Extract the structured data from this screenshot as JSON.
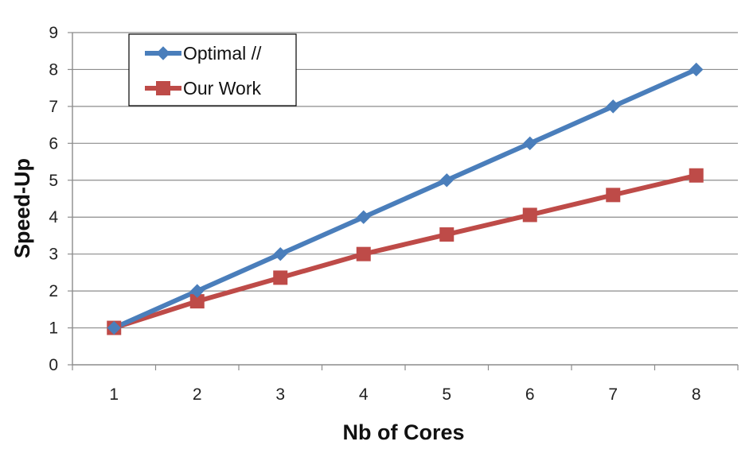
{
  "chart_data": {
    "type": "line",
    "title": "",
    "xlabel": "Nb of Cores",
    "ylabel": "Speed-Up",
    "x": [
      1,
      2,
      3,
      4,
      5,
      6,
      7,
      8
    ],
    "xticks": [
      "1",
      "2",
      "3",
      "4",
      "5",
      "6",
      "7",
      "8"
    ],
    "yticks": [
      "0",
      "1",
      "2",
      "3",
      "4",
      "5",
      "6",
      "7",
      "8",
      "9"
    ],
    "ylim": [
      0,
      9
    ],
    "grid": "horizontal",
    "legend_position": "top-left",
    "series": [
      {
        "name": "Optimal //",
        "values": [
          1,
          2,
          3,
          4,
          5,
          6,
          7,
          8
        ],
        "color": "#4a7ebb",
        "marker": "diamond"
      },
      {
        "name": "Our Work",
        "values": [
          1,
          1.72,
          2.36,
          3.0,
          3.53,
          4.06,
          4.6,
          5.13
        ],
        "color": "#be4b48",
        "marker": "square"
      }
    ]
  }
}
